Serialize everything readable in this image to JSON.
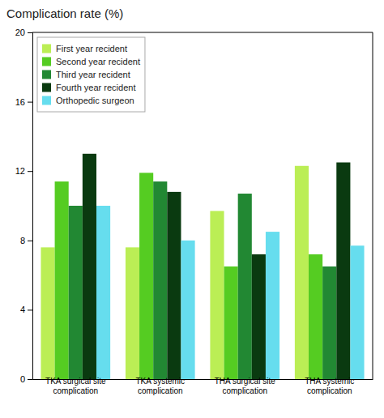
{
  "chart_data": {
    "type": "bar",
    "title": "Complication rate (%)",
    "categories": [
      "TKA surgical site\ncomplication",
      "TKA systemic\ncomplication",
      "THA surgical site\ncomplication",
      "THA systemic\ncomplication"
    ],
    "series": [
      {
        "name": "First year recident",
        "color": "#bbee55",
        "values": [
          7.6,
          7.6,
          9.7,
          12.3
        ]
      },
      {
        "name": "Second year recident",
        "color": "#55cc22",
        "values": [
          11.4,
          11.9,
          6.5,
          7.2
        ]
      },
      {
        "name": "Third year recident",
        "color": "#228833",
        "values": [
          10.0,
          11.4,
          10.7,
          6.5
        ]
      },
      {
        "name": "Fourth year recident",
        "color": "#0a3a10",
        "values": [
          13.0,
          10.8,
          7.2,
          12.5
        ]
      },
      {
        "name": "Orthopedic surgeon",
        "color": "#66ddee",
        "values": [
          10.0,
          8.0,
          8.5,
          7.7
        ]
      }
    ],
    "ylim": [
      0,
      20
    ],
    "yticks": [
      0,
      4,
      8,
      12,
      16,
      20
    ],
    "grid": false,
    "legend": "upper left"
  }
}
